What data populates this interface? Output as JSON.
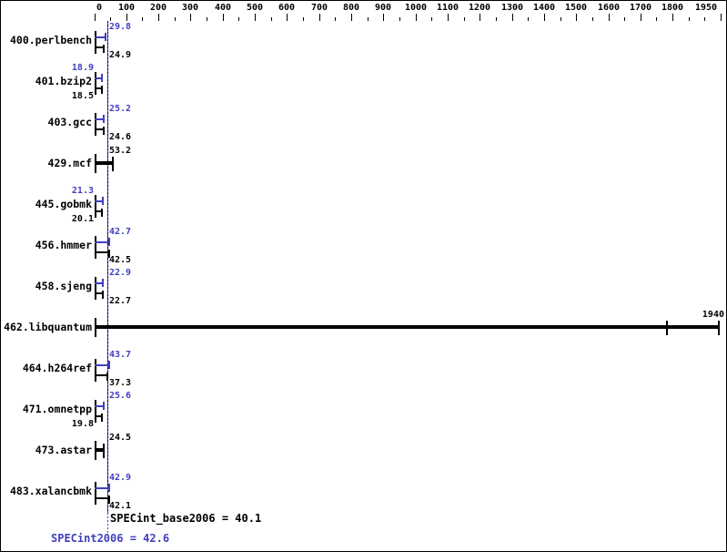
{
  "chart": {
    "axis": {
      "min": 0,
      "max": 1950,
      "minor_step": 50,
      "major_step": 100,
      "last_label": "1950",
      "label_values": [
        0,
        100,
        200,
        300,
        400,
        500,
        600,
        700,
        800,
        900,
        1000,
        1100,
        1200,
        1300,
        1400,
        1500,
        1600,
        1700,
        1800,
        1950
      ]
    },
    "benchmarks": [
      {
        "name": "400.perlbench",
        "peak": 29.8,
        "base": 24.9,
        "peak_label": "29.8",
        "base_label": "24.9",
        "single": false,
        "peak_side": "right",
        "base_side": "right"
      },
      {
        "name": "401.bzip2",
        "peak": 18.9,
        "base": 18.5,
        "peak_label": "18.9",
        "base_label": "18.5",
        "single": false,
        "peak_side": "left",
        "base_side": "left"
      },
      {
        "name": "403.gcc",
        "peak": 25.2,
        "base": 24.6,
        "peak_label": "25.2",
        "base_label": "24.6",
        "single": false,
        "peak_side": "right",
        "base_side": "right"
      },
      {
        "name": "429.mcf",
        "base": 53.2,
        "base_label": "53.2",
        "single": true,
        "base_side": "right"
      },
      {
        "name": "445.gobmk",
        "peak": 21.3,
        "base": 20.1,
        "peak_label": "21.3",
        "base_label": "20.1",
        "single": false,
        "peak_side": "left",
        "base_side": "left"
      },
      {
        "name": "456.hmmer",
        "peak": 42.7,
        "base": 42.5,
        "peak_label": "42.7",
        "base_label": "42.5",
        "single": false,
        "peak_side": "right",
        "base_side": "right"
      },
      {
        "name": "458.sjeng",
        "peak": 22.9,
        "base": 22.7,
        "peak_label": "22.9",
        "base_label": "22.7",
        "single": false,
        "peak_side": "right",
        "base_side": "right"
      },
      {
        "name": "462.libquantum",
        "base": 1940,
        "base_label": "1940",
        "single": true,
        "base_side": "end",
        "extra_cap": 1777
      },
      {
        "name": "464.h264ref",
        "peak": 43.7,
        "base": 37.3,
        "peak_label": "43.7",
        "base_label": "37.3",
        "single": false,
        "peak_side": "right",
        "base_side": "right"
      },
      {
        "name": "471.omnetpp",
        "peak": 25.6,
        "base": 19.8,
        "peak_label": "25.6",
        "base_label": "19.8",
        "single": false,
        "peak_side": "right",
        "base_side": "left"
      },
      {
        "name": "473.astar",
        "base": 24.5,
        "base_label": "24.5",
        "single": true,
        "base_side": "right"
      },
      {
        "name": "483.xalancbmk",
        "peak": 42.9,
        "base": 42.1,
        "peak_label": "42.9",
        "base_label": "42.1",
        "single": false,
        "peak_side": "right",
        "base_side": "right"
      }
    ],
    "footer": {
      "base_label": "SPECint_base2006 = 40.1",
      "peak_label": "SPECint2006 = 42.6"
    },
    "colors": {
      "peak_blue": "#3f3fbf",
      "base_black": "#000000",
      "background": "#ffffff"
    }
  },
  "chart_data": {
    "type": "bar",
    "orientation": "horizontal",
    "title": "",
    "xlabel": "",
    "ylabel": "",
    "xlim": [
      0,
      1950
    ],
    "grid": false,
    "legend_position": "none",
    "categories": [
      "400.perlbench",
      "401.bzip2",
      "403.gcc",
      "429.mcf",
      "445.gobmk",
      "456.hmmer",
      "458.sjeng",
      "462.libquantum",
      "464.h264ref",
      "471.omnetpp",
      "473.astar",
      "483.xalancbmk"
    ],
    "series": [
      {
        "name": "SPECint2006 (peak)",
        "color": "#3f3fbf",
        "values": [
          29.8,
          18.9,
          25.2,
          null,
          21.3,
          42.7,
          22.9,
          null,
          43.7,
          25.6,
          null,
          42.9
        ]
      },
      {
        "name": "SPECint_base2006 (base)",
        "color": "#000000",
        "values": [
          24.9,
          18.5,
          24.6,
          53.2,
          20.1,
          42.5,
          22.7,
          1940,
          37.3,
          19.8,
          24.5,
          42.1
        ]
      }
    ],
    "reference_lines": [
      {
        "label": "SPECint_base2006",
        "value": 40.1,
        "color": "#000000",
        "style": "dotted"
      },
      {
        "label": "SPECint2006",
        "value": 42.6,
        "color": "#3f3fbf",
        "style": "dotted"
      }
    ],
    "annotations": [
      "SPECint_base2006 = 40.1",
      "SPECint2006 = 42.6"
    ]
  }
}
